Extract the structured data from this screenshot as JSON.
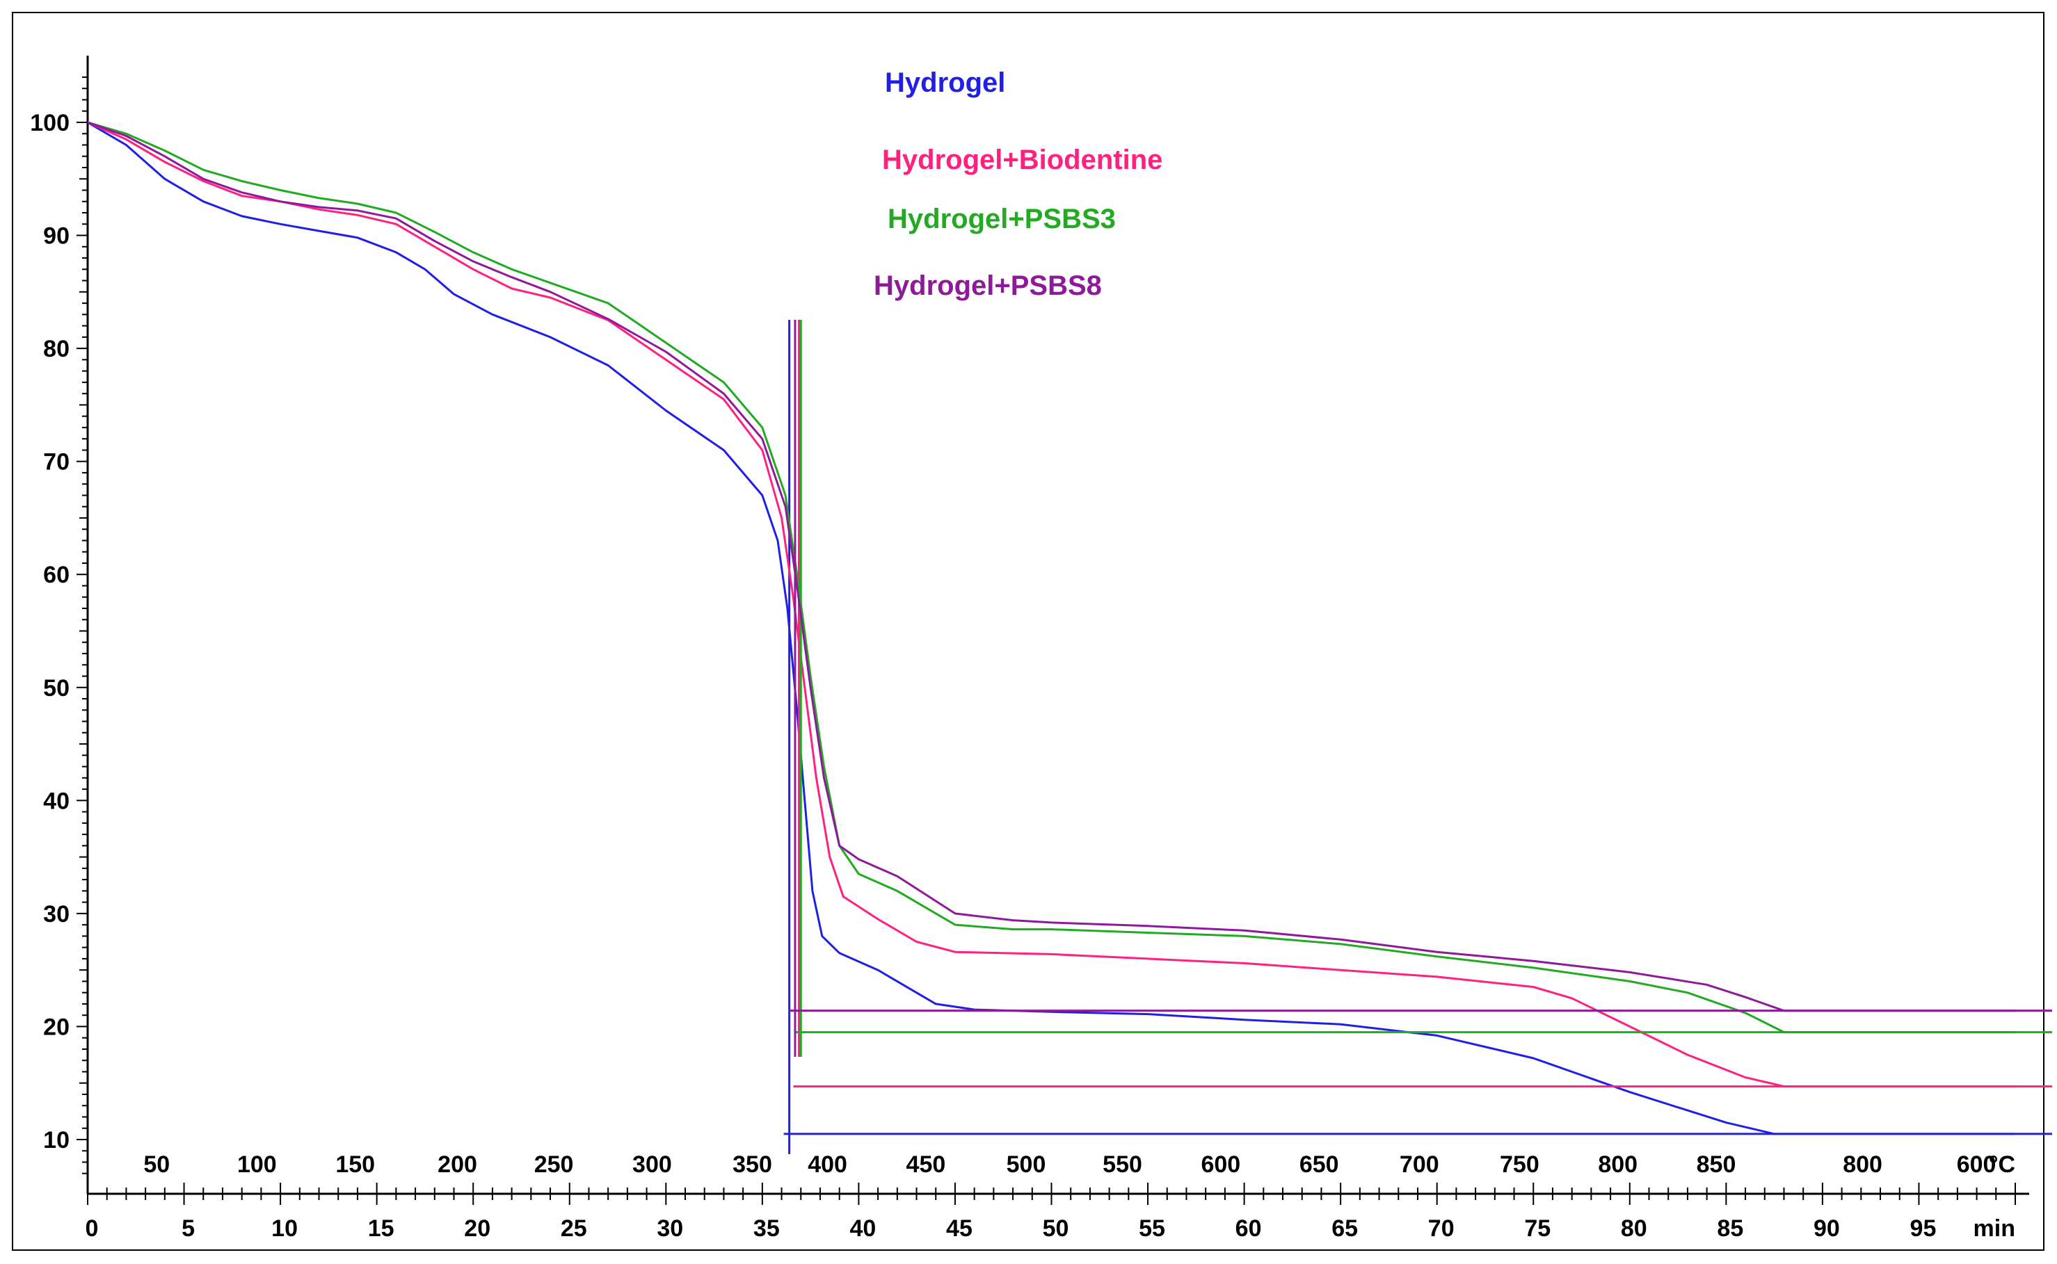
{
  "chart_data": {
    "type": "line",
    "title": "",
    "ylabel": "",
    "xlabel_temp_unit": "°C",
    "xlabel_time_unit": "min",
    "ylim": [
      5,
      105
    ],
    "xlim_time": [
      0,
      100
    ],
    "y_ticks": [
      "10",
      "20",
      "30",
      "40",
      "50",
      "60",
      "70",
      "80",
      "90",
      "100"
    ],
    "time_ticks": [
      "0",
      "5",
      "10",
      "15",
      "20",
      "25",
      "30",
      "35",
      "40",
      "45",
      "50",
      "55",
      "60",
      "65",
      "70",
      "75",
      "80",
      "85",
      "90",
      "95"
    ],
    "temp_ticks": [
      {
        "t": 2.5,
        "label": "50"
      },
      {
        "t": 7.7,
        "label": "100"
      },
      {
        "t": 12.8,
        "label": "150"
      },
      {
        "t": 18.1,
        "label": "200"
      },
      {
        "t": 23.1,
        "label": "250"
      },
      {
        "t": 28.2,
        "label": "300"
      },
      {
        "t": 33.4,
        "label": "350"
      },
      {
        "t": 37.3,
        "label": "400"
      },
      {
        "t": 42.4,
        "label": "450"
      },
      {
        "t": 47.6,
        "label": "500"
      },
      {
        "t": 52.6,
        "label": "550"
      },
      {
        "t": 57.7,
        "label": "600"
      },
      {
        "t": 62.8,
        "label": "650"
      },
      {
        "t": 68.0,
        "label": "700"
      },
      {
        "t": 73.2,
        "label": "750"
      },
      {
        "t": 78.3,
        "label": "800"
      },
      {
        "t": 83.4,
        "label": "850"
      },
      {
        "t": 91.0,
        "label": "800"
      },
      {
        "t": 96.9,
        "label": "600"
      }
    ],
    "legend_placement": "top-center",
    "series": [
      {
        "name": "Hydrogel",
        "color": "#1f1fe6",
        "points": [
          [
            0,
            100
          ],
          [
            2,
            98
          ],
          [
            4,
            95
          ],
          [
            6,
            93
          ],
          [
            8,
            91.7
          ],
          [
            10,
            91
          ],
          [
            12,
            90.4
          ],
          [
            14,
            89.8
          ],
          [
            16,
            88.5
          ],
          [
            17.5,
            87
          ],
          [
            19,
            84.8
          ],
          [
            21,
            83
          ],
          [
            24,
            81
          ],
          [
            27,
            78.5
          ],
          [
            30,
            74.5
          ],
          [
            33,
            71
          ],
          [
            35,
            67
          ],
          [
            35.8,
            63
          ],
          [
            36.3,
            57
          ],
          [
            36.8,
            48
          ],
          [
            37.2,
            40
          ],
          [
            37.6,
            32
          ],
          [
            38.1,
            28
          ],
          [
            39,
            26.5
          ],
          [
            41,
            25
          ],
          [
            44,
            22
          ],
          [
            46,
            21.5
          ],
          [
            50,
            21.3
          ],
          [
            55,
            21.1
          ],
          [
            60,
            20.6
          ],
          [
            65,
            20.2
          ],
          [
            70,
            19.2
          ],
          [
            75,
            17.2
          ],
          [
            80,
            14.2
          ],
          [
            85,
            11.5
          ],
          [
            87.5,
            10.5
          ],
          [
            90,
            10.5
          ],
          [
            100,
            10.5
          ]
        ],
        "final_value": 10.5,
        "crosshair_time": 36.4
      },
      {
        "name": "Hydrogel+Biodentine",
        "color": "#ff2080",
        "points": [
          [
            0,
            100
          ],
          [
            2,
            98.5
          ],
          [
            4,
            96.5
          ],
          [
            6,
            94.8
          ],
          [
            8,
            93.5
          ],
          [
            10,
            93
          ],
          [
            12,
            92.3
          ],
          [
            14,
            91.8
          ],
          [
            16,
            91
          ],
          [
            18,
            89
          ],
          [
            20,
            87
          ],
          [
            22,
            85.3
          ],
          [
            24,
            84.5
          ],
          [
            27,
            82.5
          ],
          [
            30,
            79
          ],
          [
            33,
            75.5
          ],
          [
            35,
            71
          ],
          [
            36,
            65
          ],
          [
            36.6,
            58
          ],
          [
            37.2,
            50
          ],
          [
            37.8,
            42
          ],
          [
            38.5,
            35
          ],
          [
            39.2,
            31.5
          ],
          [
            41,
            29.5
          ],
          [
            43,
            27.5
          ],
          [
            45,
            26.6
          ],
          [
            50,
            26.4
          ],
          [
            55,
            26
          ],
          [
            60,
            25.6
          ],
          [
            65,
            25
          ],
          [
            70,
            24.4
          ],
          [
            75,
            23.5
          ],
          [
            77,
            22.5
          ],
          [
            80,
            20
          ],
          [
            83,
            17.5
          ],
          [
            86,
            15.5
          ],
          [
            88,
            14.7
          ],
          [
            100,
            14.7
          ]
        ],
        "final_value": 14.7,
        "crosshair_time": 36.9
      },
      {
        "name": "Hydrogel+PSBS3",
        "color": "#22aa22",
        "points": [
          [
            0,
            100
          ],
          [
            2,
            99
          ],
          [
            4,
            97.5
          ],
          [
            6,
            95.8
          ],
          [
            8,
            94.8
          ],
          [
            10,
            94
          ],
          [
            12,
            93.3
          ],
          [
            14,
            92.8
          ],
          [
            16,
            92
          ],
          [
            18,
            90.3
          ],
          [
            20,
            88.5
          ],
          [
            22,
            87
          ],
          [
            24,
            85.8
          ],
          [
            27,
            84
          ],
          [
            30,
            80.5
          ],
          [
            33,
            77
          ],
          [
            35,
            73
          ],
          [
            36.2,
            67
          ],
          [
            36.8,
            60
          ],
          [
            37.5,
            51
          ],
          [
            38.2,
            43
          ],
          [
            39,
            36
          ],
          [
            40,
            33.5
          ],
          [
            42,
            32
          ],
          [
            45,
            29
          ],
          [
            48,
            28.6
          ],
          [
            50,
            28.6
          ],
          [
            55,
            28.3
          ],
          [
            60,
            28
          ],
          [
            65,
            27.3
          ],
          [
            70,
            26.2
          ],
          [
            75,
            25.2
          ],
          [
            80,
            24
          ],
          [
            83,
            23
          ],
          [
            86,
            21.2
          ],
          [
            88,
            19.5
          ],
          [
            100,
            19.5
          ]
        ],
        "final_value": 19.5,
        "crosshair_time": 37.0
      },
      {
        "name": "Hydrogel+PSBS8",
        "color": "#8e1a9a",
        "points": [
          [
            0,
            100
          ],
          [
            2,
            98.8
          ],
          [
            4,
            97
          ],
          [
            6,
            95
          ],
          [
            8,
            93.8
          ],
          [
            10,
            93
          ],
          [
            12,
            92.5
          ],
          [
            14,
            92.2
          ],
          [
            16,
            91.5
          ],
          [
            18,
            89.5
          ],
          [
            20,
            87.7
          ],
          [
            22,
            86.3
          ],
          [
            24,
            85
          ],
          [
            27,
            82.6
          ],
          [
            30,
            79.7
          ],
          [
            33,
            76
          ],
          [
            35,
            72
          ],
          [
            36.2,
            66
          ],
          [
            36.8,
            59
          ],
          [
            37.5,
            50
          ],
          [
            38.2,
            42
          ],
          [
            39,
            36
          ],
          [
            40,
            34.8
          ],
          [
            42,
            33.3
          ],
          [
            45,
            30
          ],
          [
            48,
            29.4
          ],
          [
            50,
            29.2
          ],
          [
            55,
            28.9
          ],
          [
            60,
            28.5
          ],
          [
            65,
            27.7
          ],
          [
            70,
            26.6
          ],
          [
            75,
            25.8
          ],
          [
            80,
            24.8
          ],
          [
            84,
            23.7
          ],
          [
            86,
            22.6
          ],
          [
            88,
            21.4
          ],
          [
            100,
            21.4
          ]
        ],
        "final_value": 21.4,
        "crosshair_time": 36.7
      }
    ]
  }
}
